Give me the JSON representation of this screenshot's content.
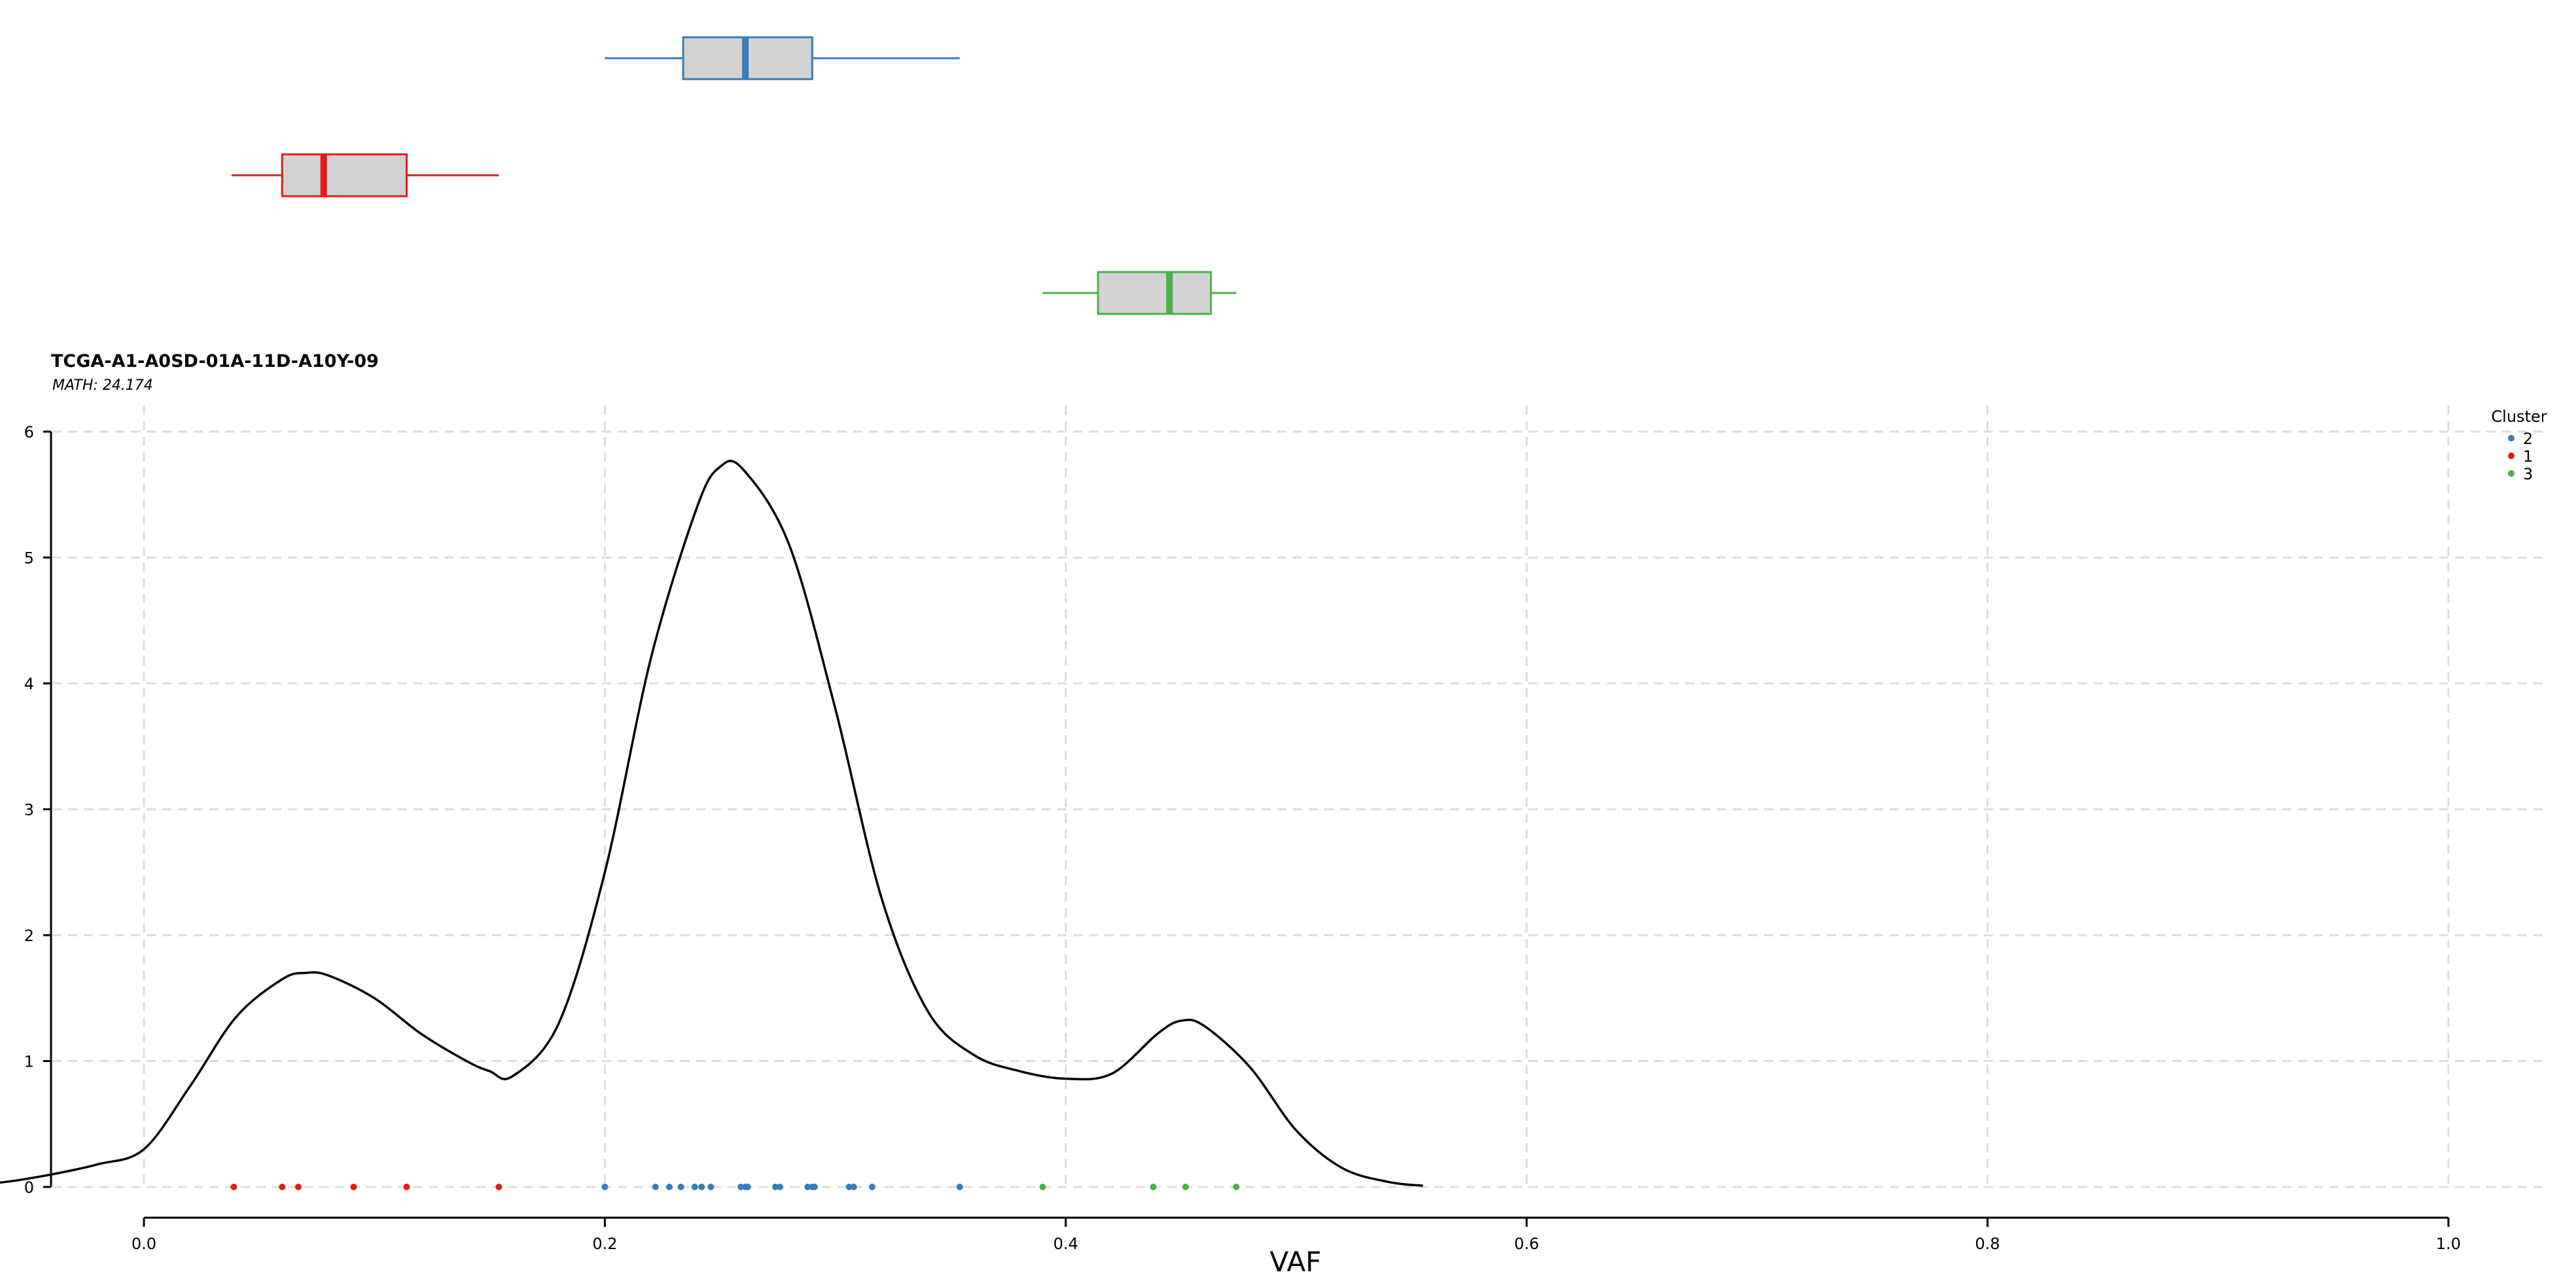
{
  "title": "TCGA-A1-A0SD-01A-11D-A10Y-09",
  "subtitle": "MATH: 24.174",
  "chart_data": {
    "type": "line",
    "title": "TCGA-A1-A0SD-01A-11D-A10Y-09",
    "subtitle": "MATH: 24.174",
    "xlabel": "VAF",
    "ylabel": "",
    "xlim": [
      -0.08,
      1.04
    ],
    "ylim": [
      0,
      6
    ],
    "x_ticks": [
      "0.0",
      "0.2",
      "0.4",
      "0.6",
      "0.8",
      "1.0"
    ],
    "y_ticks": [
      "0",
      "1",
      "2",
      "3",
      "4",
      "5",
      "6"
    ],
    "grid": true,
    "legend": {
      "title": "Cluster",
      "position": "top-right",
      "entries": [
        "2",
        "1",
        "3"
      ]
    },
    "density": {
      "x": [
        -0.08,
        -0.06,
        -0.04,
        -0.02,
        0.0,
        0.02,
        0.04,
        0.06,
        0.07,
        0.08,
        0.1,
        0.12,
        0.14,
        0.15,
        0.16,
        0.18,
        0.2,
        0.22,
        0.24,
        0.25,
        0.26,
        0.28,
        0.3,
        0.32,
        0.34,
        0.36,
        0.38,
        0.4,
        0.42,
        0.44,
        0.45,
        0.46,
        0.48,
        0.5,
        0.52,
        0.54,
        0.555
      ],
      "y": [
        0.01,
        0.04,
        0.1,
        0.18,
        0.3,
        0.8,
        1.35,
        1.65,
        1.7,
        1.68,
        1.5,
        1.22,
        1.0,
        0.92,
        0.88,
        1.3,
        2.5,
        4.2,
        5.4,
        5.72,
        5.7,
        5.1,
        3.8,
        2.3,
        1.4,
        1.05,
        0.92,
        0.86,
        0.9,
        1.22,
        1.32,
        1.28,
        0.95,
        0.45,
        0.15,
        0.04,
        0.01
      ]
    },
    "series": [
      {
        "name": "2",
        "color": "#377eb8",
        "values": [
          0.2,
          0.222,
          0.228,
          0.233,
          0.239,
          0.242,
          0.246,
          0.259,
          0.261,
          0.262,
          0.274,
          0.276,
          0.288,
          0.29,
          0.291,
          0.306,
          0.308,
          0.316,
          0.354
        ],
        "box": {
          "whisker_low": 0.2,
          "q1": 0.234,
          "median": 0.261,
          "q3": 0.29,
          "whisker_high": 0.354
        }
      },
      {
        "name": "1",
        "color": "#e41a1c",
        "values": [
          0.039,
          0.06,
          0.067,
          0.091,
          0.114,
          0.154
        ],
        "box": {
          "whisker_low": 0.038,
          "q1": 0.06,
          "median": 0.078,
          "q3": 0.114,
          "whisker_high": 0.154
        }
      },
      {
        "name": "3",
        "color": "#4daf4a",
        "values": [
          0.39,
          0.438,
          0.452,
          0.474
        ],
        "box": {
          "whisker_low": 0.39,
          "q1": 0.414,
          "median": 0.445,
          "q3": 0.463,
          "whisker_high": 0.474
        }
      }
    ]
  }
}
